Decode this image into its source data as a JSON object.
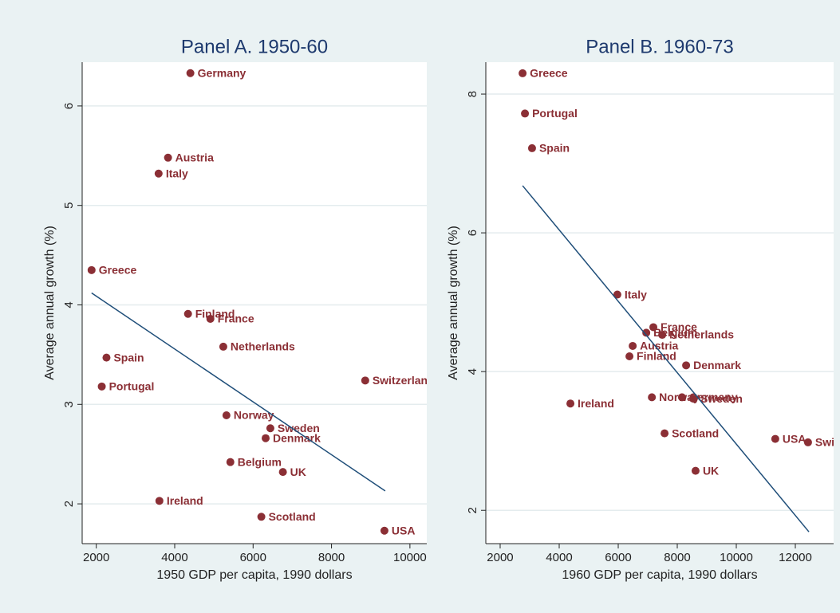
{
  "chart_data": [
    {
      "type": "scatter",
      "title": "Panel A. 1950-60",
      "x_label": "1950 GDP per capita, 1990 dollars",
      "y_label": "Average annual growth (%)",
      "color": "#8b2f35",
      "line_color": "#1f4e79",
      "categories": [
        "Germany",
        "Austria",
        "Italy",
        "Greece",
        "Finland",
        "France",
        "Netherlands",
        "Spain",
        "Portugal",
        "Switzerland",
        "Norway",
        "Sweden",
        "Denmark",
        "Belgium",
        "UK",
        "Ireland",
        "Scotland",
        "USA"
      ],
      "x": [
        4400,
        3830,
        3590,
        1880,
        4340,
        4910,
        5240,
        2260,
        2140,
        8860,
        5320,
        6440,
        6320,
        5420,
        6760,
        3610,
        6210,
        9350
      ],
      "values": [
        6.33,
        5.48,
        5.32,
        4.35,
        3.91,
        3.86,
        3.58,
        3.47,
        3.18,
        3.24,
        2.89,
        2.76,
        2.66,
        2.42,
        2.32,
        2.03,
        1.87,
        1.73
      ],
      "fit": {
        "x": [
          1880,
          9370
        ],
        "y": [
          4.12,
          2.13
        ]
      },
      "xlim": [
        1640,
        10430
      ],
      "xticks": [
        2000,
        4000,
        6000,
        8000,
        10000
      ],
      "ylim": [
        1.6,
        6.44
      ],
      "yticks": [
        2,
        3,
        4,
        5,
        6
      ],
      "grid": true
    },
    {
      "type": "scatter",
      "title": "Panel B. 1960-73",
      "x_label": "1960 GDP per capita, 1990 dollars",
      "y_label": "Average annual growth (%)",
      "color": "#8b2f35",
      "line_color": "#1f4e79",
      "categories": [
        "Greece",
        "Portugal",
        "Spain",
        "Italy",
        "France",
        "Belgium",
        "Netherlands",
        "Austria",
        "Finland",
        "Denmark",
        "Norway",
        "Ireland",
        "Germany",
        "Sweden",
        "Scotland",
        "UK",
        "USA",
        "Switzerland"
      ],
      "x": [
        2760,
        2840,
        3080,
        5970,
        7190,
        6950,
        7490,
        6490,
        6380,
        8300,
        7140,
        4380,
        8160,
        8540,
        7570,
        8620,
        11320,
        12430
      ],
      "values": [
        8.3,
        7.72,
        7.22,
        5.11,
        4.64,
        4.56,
        4.53,
        4.37,
        4.22,
        4.09,
        3.63,
        3.54,
        3.63,
        3.61,
        3.11,
        2.57,
        3.03,
        2.98
      ],
      "fit": {
        "x": [
          2760,
          12460
        ],
        "y": [
          6.68,
          1.69
        ]
      },
      "xlim": [
        1514,
        13297
      ],
      "xticks": [
        2000,
        4000,
        6000,
        8000,
        10000,
        12000
      ],
      "ylim": [
        1.52,
        8.46
      ],
      "yticks": [
        2,
        4,
        6,
        8
      ],
      "grid": true
    }
  ]
}
